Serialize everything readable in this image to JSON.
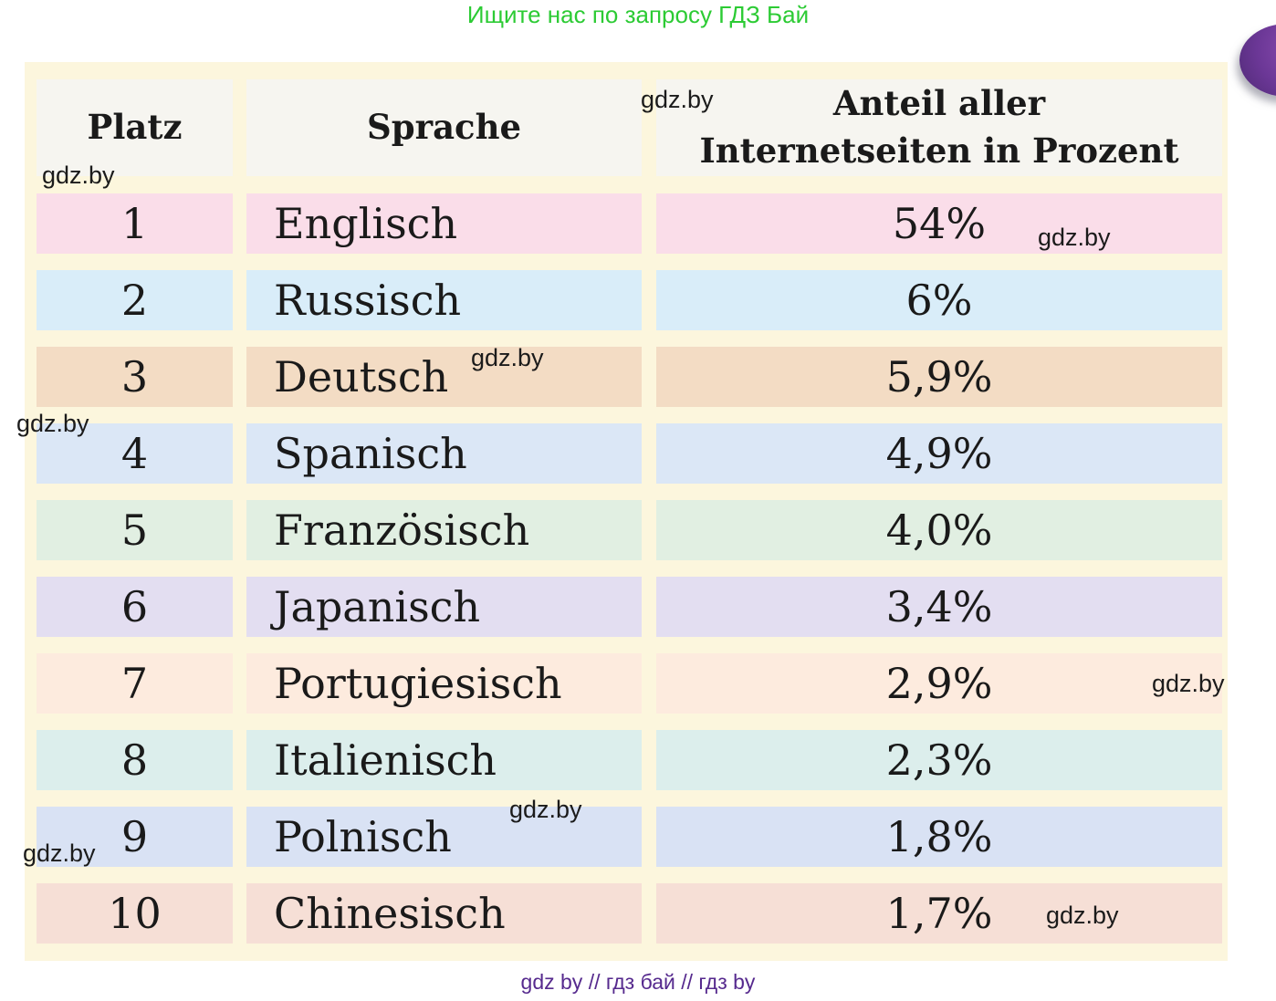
{
  "page": {
    "top_banner": "Ищите нас по запросу ГДЗ Бай",
    "footer": "gdz by  //  гдз бай  //  гдз by",
    "watermark": "gdz.by",
    "banner_color": "#2ccb34",
    "footer_color": "#562a8e",
    "panel_bg": "#fcf6dd",
    "header_bg": "#f6f5f0",
    "blob_color": "#6b3796"
  },
  "table": {
    "headers": [
      "Platz",
      "Sprache",
      "Anteil aller Internetseiten in Prozent"
    ],
    "header_anteil_lines": [
      "Anteil aller",
      "Internetseiten in Prozent"
    ],
    "rows": [
      {
        "platz": "1",
        "sprache": "Englisch",
        "anteil": "54%",
        "color": "#fadde9"
      },
      {
        "platz": "2",
        "sprache": "Russisch",
        "anteil": "6%",
        "color": "#d9edf9"
      },
      {
        "platz": "3",
        "sprache": "Deutsch",
        "anteil": "5,9%",
        "color": "#f3dcc4"
      },
      {
        "platz": "4",
        "sprache": "Spanisch",
        "anteil": "4,9%",
        "color": "#dbe7f6"
      },
      {
        "platz": "5",
        "sprache": "Französisch",
        "anteil": "4,0%",
        "color": "#e1efe2"
      },
      {
        "platz": "6",
        "sprache": "Japanisch",
        "anteil": "3,4%",
        "color": "#e3def1"
      },
      {
        "platz": "7",
        "sprache": "Portugiesisch",
        "anteil": "2,9%",
        "color": "#fdebde"
      },
      {
        "platz": "8",
        "sprache": "Italienisch",
        "anteil": "2,3%",
        "color": "#dceeec"
      },
      {
        "platz": "9",
        "sprache": "Polnisch",
        "anteil": "1,8%",
        "color": "#d9e2f4"
      },
      {
        "platz": "10",
        "sprache": "Chinesisch",
        "anteil": "1,7%",
        "color": "#f6dfd6"
      }
    ]
  },
  "chart_data": {
    "type": "table",
    "title": "Anteil aller Internetseiten in Prozent",
    "columns": [
      "Platz",
      "Sprache",
      "Anteil aller Internetseiten in Prozent"
    ],
    "rows": [
      [
        "1",
        "Englisch",
        "54%"
      ],
      [
        "2",
        "Russisch",
        "6%"
      ],
      [
        "3",
        "Deutsch",
        "5,9%"
      ],
      [
        "4",
        "Spanisch",
        "4,9%"
      ],
      [
        "5",
        "Französisch",
        "4,0%"
      ],
      [
        "6",
        "Japanisch",
        "3,4%"
      ],
      [
        "7",
        "Portugiesisch",
        "2,9%"
      ],
      [
        "8",
        "Italienisch",
        "2,3%"
      ],
      [
        "9",
        "Polnisch",
        "1,8%"
      ],
      [
        "10",
        "Chinesisch",
        "1,7%"
      ]
    ],
    "values_percent": [
      54,
      6,
      5.9,
      4.9,
      4.0,
      3.4,
      2.9,
      2.3,
      1.8,
      1.7
    ]
  }
}
